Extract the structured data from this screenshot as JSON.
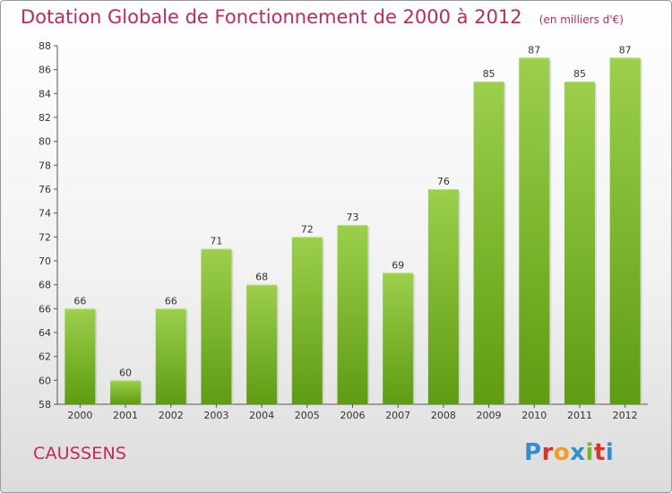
{
  "header": {
    "title": "Dotation Globale de Fonctionnement de 2000 à 2012",
    "subtitle": "(en milliers d'€)"
  },
  "footer": {
    "commune": "CAUSSENS",
    "logo": "Proxiti"
  },
  "colors": {
    "title": "#c0295b",
    "bar_light": "#9ccf4c",
    "bar_dark": "#5e9c12",
    "logo": [
      "#2f8fd0",
      "#e0302a",
      "#f39c1d",
      "#2f8fd0",
      "#79b52a",
      "#e0302a",
      "#2f8fd0"
    ]
  },
  "chart_data": {
    "type": "bar",
    "categories": [
      "2000",
      "2001",
      "2002",
      "2003",
      "2004",
      "2005",
      "2006",
      "2007",
      "2008",
      "2009",
      "2010",
      "2011",
      "2012"
    ],
    "values": [
      66,
      60,
      66,
      71,
      68,
      72,
      73,
      69,
      76,
      85,
      87,
      85,
      87
    ],
    "ylim": [
      58,
      88
    ],
    "yticks": [
      58,
      60,
      62,
      64,
      66,
      68,
      70,
      72,
      74,
      76,
      78,
      80,
      82,
      84,
      86,
      88
    ],
    "grid": false,
    "legend": "none",
    "title": "Dotation Globale de Fonctionnement de 2000 à 2012",
    "xlabel": "",
    "ylabel": ""
  }
}
